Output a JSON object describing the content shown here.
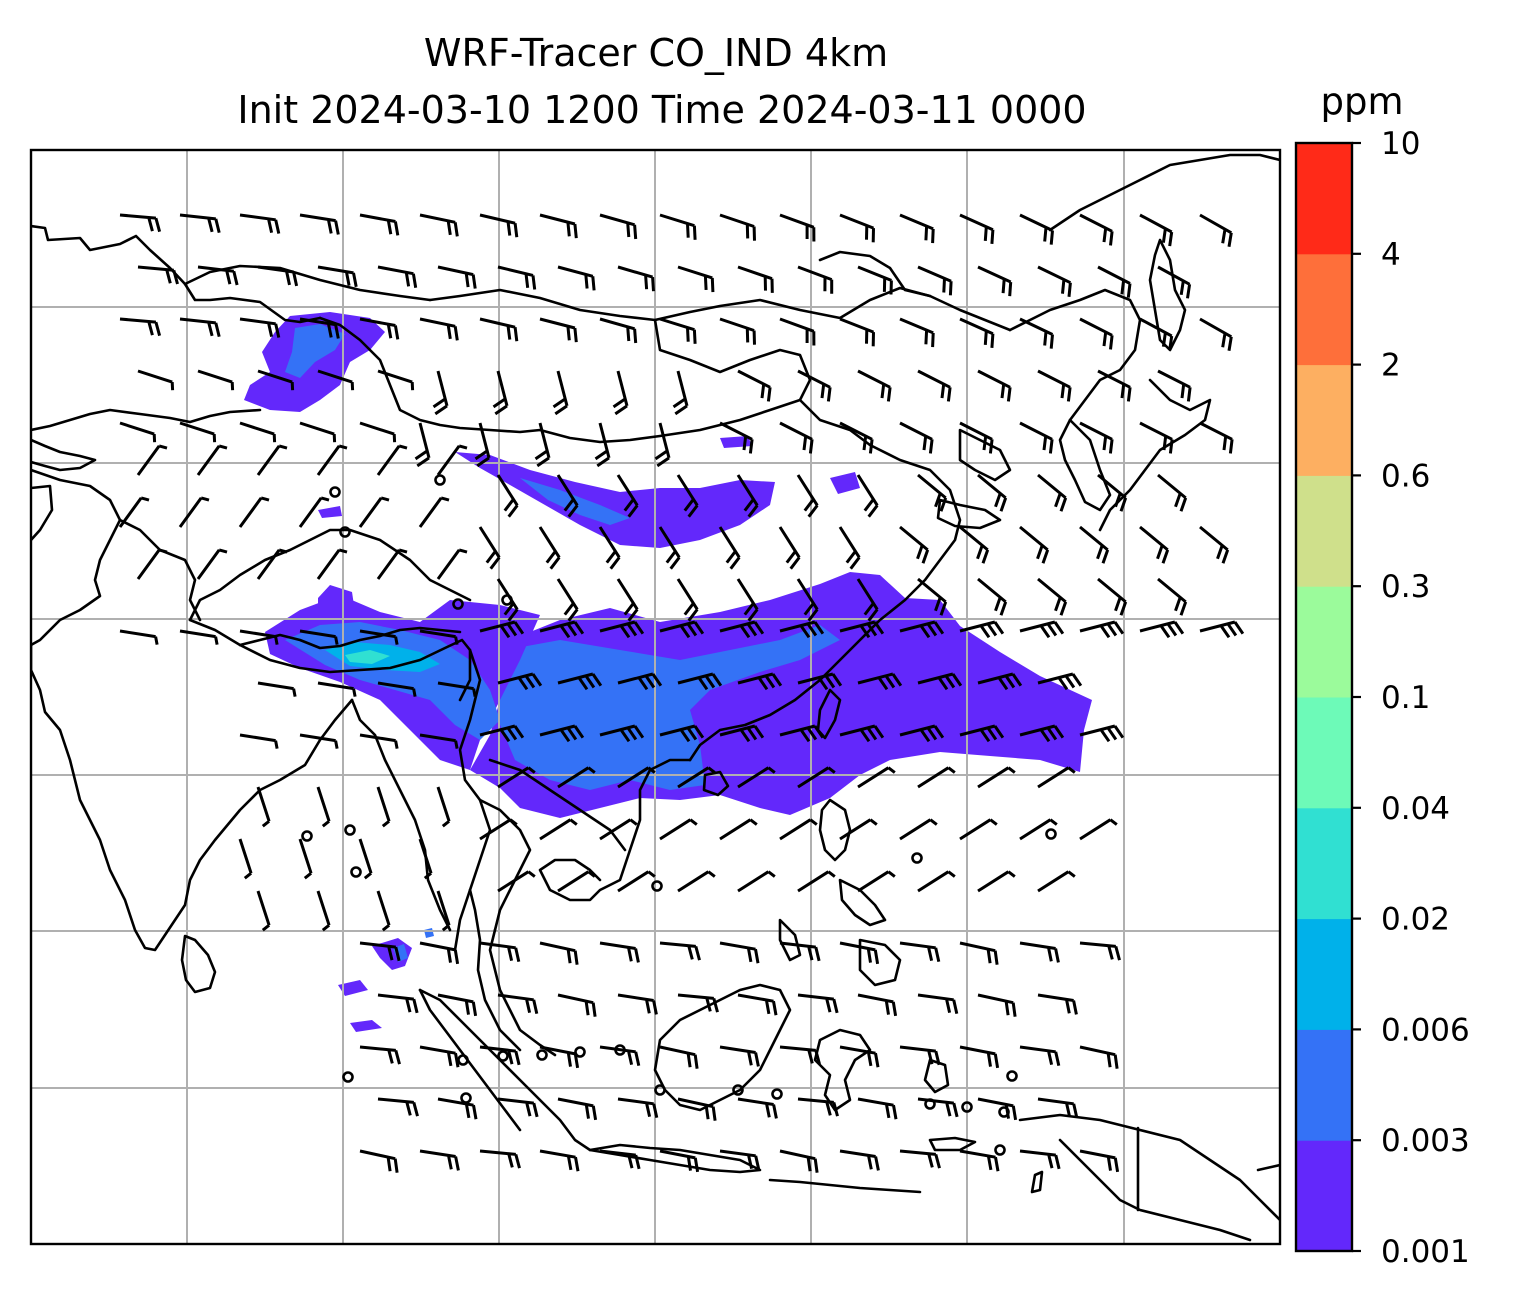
{
  "map": {
    "title_line1": "WRF-Tracer CO_IND 4km",
    "title_line2": "Init 2024-03-10 1200 Time 2024-03-11 0000",
    "variable": "CO_IND",
    "model": "WRF-Tracer",
    "resolution": "4km",
    "init_time": "2024-03-10 1200",
    "valid_time": "2024-03-11 0000",
    "region": "South and Southeast Asia",
    "layers": [
      "coastlines",
      "country borders",
      "lat-lon gridlines",
      "CO tracer filled contours",
      "wind barbs"
    ],
    "gridlines": true
  },
  "colorbar": {
    "unit": "ppm",
    "ticks": [
      "0.001",
      "0.003",
      "0.006",
      "0.02",
      "0.04",
      "0.1",
      "0.3",
      "0.6",
      "2",
      "4",
      "10"
    ],
    "colors": [
      "#6328fb",
      "#3472f6",
      "#00b1ea",
      "#30e0d2",
      "#6dfab8",
      "#9bfb9b",
      "#cfe08b",
      "#fdaf61",
      "#fe6f3a",
      "#ff2a18"
    ]
  },
  "concentration": {
    "dominant_level": "0.001",
    "max_level": "0.04",
    "plumes": [
      {
        "region": "Northern India / Nepal / Bhutan / Bangladesh",
        "level": "0.003–0.02"
      },
      {
        "region": "Indochina / Southern China / South China Sea",
        "level": "0.001–0.003"
      },
      {
        "region": "Tibetan Plateau / Central China",
        "level": "0.001–0.003"
      },
      {
        "region": "Northwest (Pakistan / Afghanistan)",
        "level": "0.001–0.006"
      },
      {
        "region": "Andaman Sea / Sumatra west coast",
        "level": "0.001–0.006"
      }
    ]
  }
}
